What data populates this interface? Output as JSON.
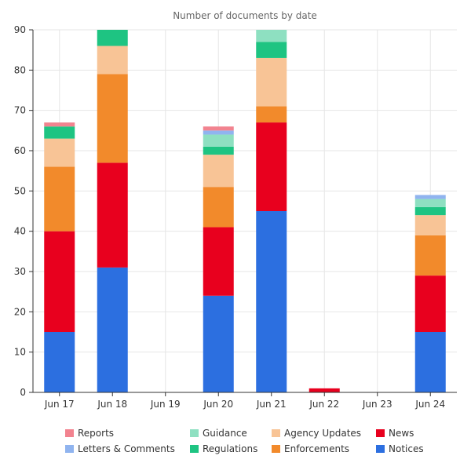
{
  "chart_data": {
    "type": "bar",
    "stacked": true,
    "title": "Number of documents by date",
    "xlabel": "",
    "ylabel": "",
    "categories": [
      "Jun 17",
      "Jun 18",
      "Jun 19",
      "Jun 20",
      "Jun 21",
      "Jun 22",
      "Jun 23",
      "Jun 24"
    ],
    "ylim": [
      0,
      90
    ],
    "yticks": [
      "0",
      "10",
      "20",
      "30",
      "40",
      "50",
      "60",
      "70",
      "80",
      "90"
    ],
    "grid": true,
    "legend_position": "bottom",
    "series": [
      {
        "name": "Notices",
        "color": "#2c6fe0",
        "values": [
          15,
          31,
          0,
          24,
          45,
          0,
          0,
          15
        ]
      },
      {
        "name": "News",
        "color": "#e8001e",
        "values": [
          25,
          26,
          0,
          17,
          22,
          1,
          0,
          14
        ]
      },
      {
        "name": "Enforcements",
        "color": "#f28a2b",
        "values": [
          16,
          22,
          0,
          10,
          4,
          0,
          0,
          10
        ]
      },
      {
        "name": "Agency Updates",
        "color": "#f8c496",
        "values": [
          7,
          7,
          0,
          8,
          12,
          0,
          0,
          5
        ]
      },
      {
        "name": "Regulations",
        "color": "#1ec482",
        "values": [
          3,
          4,
          0,
          2,
          4,
          0,
          0,
          2
        ]
      },
      {
        "name": "Guidance",
        "color": "#8ee0c1",
        "values": [
          0,
          0,
          0,
          3,
          4,
          0,
          0,
          2
        ]
      },
      {
        "name": "Letters & Comments",
        "color": "#90b4ef",
        "values": [
          0,
          0,
          0,
          1,
          0,
          0,
          0,
          1
        ]
      },
      {
        "name": "Reports",
        "color": "#f2838f",
        "values": [
          1,
          0,
          0,
          1,
          0,
          0,
          0,
          0
        ]
      }
    ],
    "legend": [
      [
        "Reports",
        "Guidance",
        "Agency Updates",
        "News"
      ],
      [
        "Letters & Comments",
        "Regulations",
        "Enforcements",
        "Notices"
      ]
    ]
  }
}
